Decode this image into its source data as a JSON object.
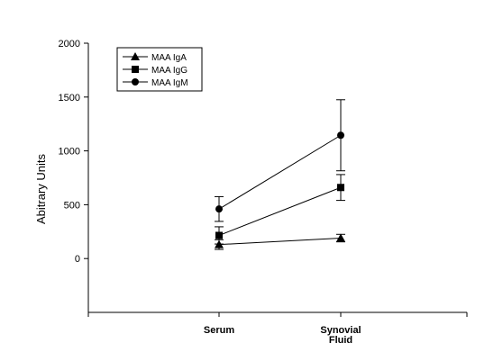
{
  "chart_data": {
    "type": "line",
    "title": "",
    "xlabel": "",
    "ylabel": "Abitrary Units",
    "categories": [
      "Serum",
      "Synovial Fluid"
    ],
    "category_label_lines": [
      [
        "Serum"
      ],
      [
        "Synovial",
        "Fluid"
      ]
    ],
    "ylim": [
      -500,
      2000
    ],
    "yticks": [
      0,
      500,
      1000,
      1500,
      2000
    ],
    "grid": false,
    "legend_position": "top-left",
    "series": [
      {
        "name": "MAA IgA",
        "marker": "triangle",
        "values": [
          130,
          190
        ],
        "errors": [
          45,
          35
        ]
      },
      {
        "name": "MAA IgG",
        "marker": "square",
        "values": [
          215,
          660
        ],
        "errors": [
          80,
          120
        ]
      },
      {
        "name": "MAA IgM",
        "marker": "circle",
        "values": [
          460,
          1145
        ],
        "errors": [
          115,
          330
        ]
      }
    ],
    "colors": {
      "line": "#000000",
      "background": "#ffffff"
    }
  }
}
